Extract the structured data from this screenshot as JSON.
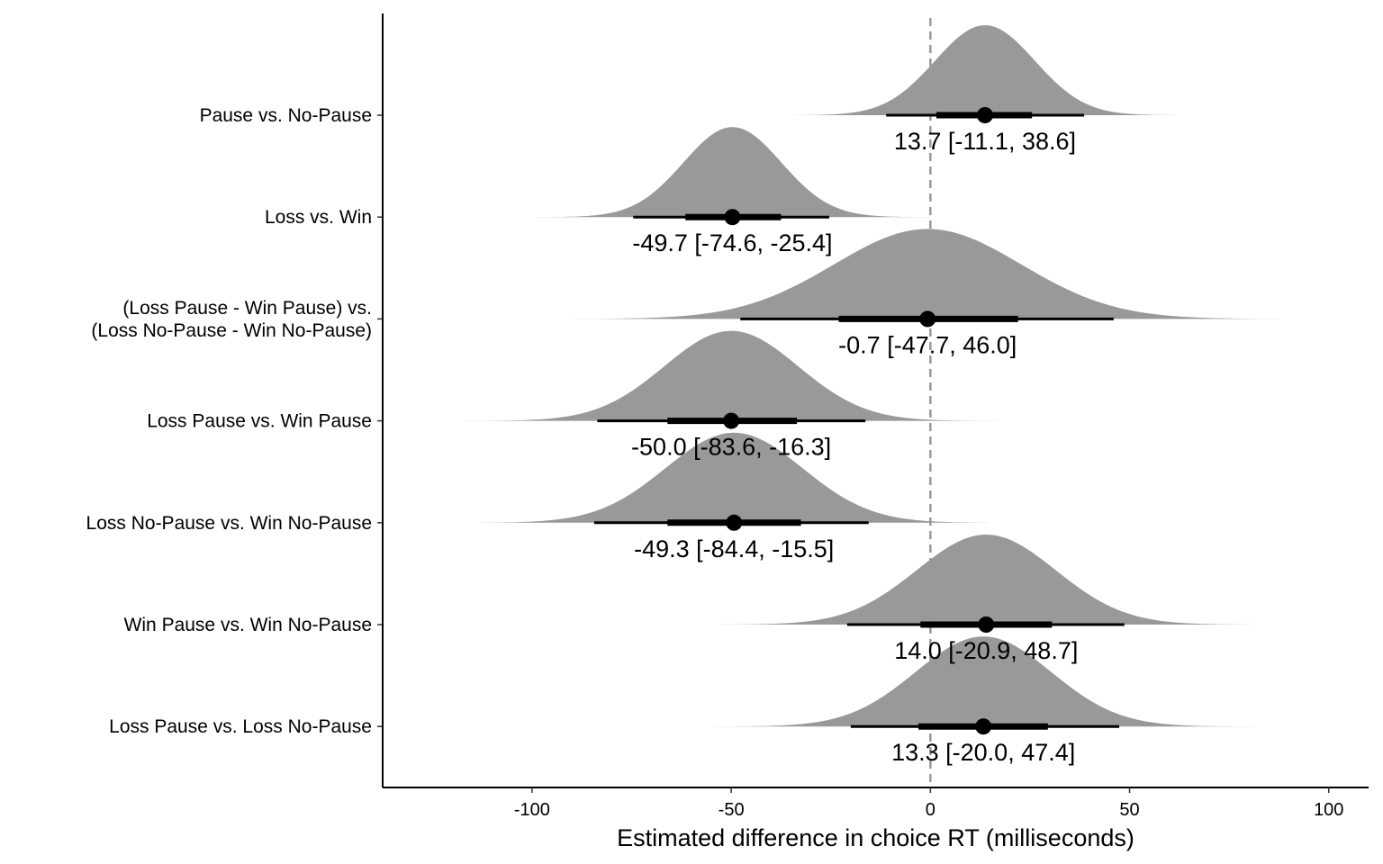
{
  "chart_data": {
    "type": "halfeye",
    "title": "",
    "xlabel": "Estimated difference in choice RT (milliseconds)",
    "ylabel": "",
    "xlim": [
      -137.5,
      110
    ],
    "xticks": [
      -100,
      -50,
      0,
      50,
      100
    ],
    "reference_line_x": 0,
    "grid": false,
    "colors": {
      "density": "#999999",
      "interval": "#000000",
      "reference": "#999999"
    },
    "series": [
      {
        "label_lines": [
          "Pause vs. No-Pause"
        ],
        "median": 13.7,
        "ci_low": -11.1,
        "ci_high": 38.6,
        "inner_low": 1.5,
        "inner_high": 25.5,
        "sd": 12.5,
        "skew": 0.0,
        "annotation": "13.7 [-11.1, 38.6]"
      },
      {
        "label_lines": [
          "Loss vs. Win"
        ],
        "median": -49.7,
        "ci_low": -74.6,
        "ci_high": -25.4,
        "inner_low": -61.5,
        "inner_high": -37.5,
        "sd": 12.3,
        "skew": 0.0,
        "annotation": "-49.7 [-74.6, -25.4]"
      },
      {
        "label_lines": [
          "(Loss Pause - Win Pause) vs.",
          "(Loss No-Pause - Win No-Pause)"
        ],
        "median": -0.7,
        "ci_low": -47.7,
        "ci_high": 46.0,
        "inner_low": -23.0,
        "inner_high": 22.0,
        "sd": 23.5,
        "skew": 0.0,
        "annotation": "-0.7 [-47.7, 46.0]"
      },
      {
        "label_lines": [
          "Loss Pause vs. Win Pause"
        ],
        "median": -50.0,
        "ci_low": -83.6,
        "ci_high": -16.3,
        "inner_low": -66.0,
        "inner_high": -33.5,
        "sd": 16.8,
        "skew": 0.0,
        "annotation": "-50.0 [-83.6, -16.3]"
      },
      {
        "label_lines": [
          "Loss No-Pause vs. Win No-Pause"
        ],
        "median": -49.3,
        "ci_low": -84.4,
        "ci_high": -15.5,
        "inner_low": -66.0,
        "inner_high": -32.5,
        "sd": 17.2,
        "skew": 0.0,
        "annotation": "-49.3 [-84.4, -15.5]"
      },
      {
        "label_lines": [
          "Win Pause vs. Win No-Pause"
        ],
        "median": 14.0,
        "ci_low": -20.9,
        "ci_high": 48.7,
        "inner_low": -2.5,
        "inner_high": 30.5,
        "sd": 17.4,
        "skew": 0.0,
        "annotation": "14.0 [-20.9, 48.7]"
      },
      {
        "label_lines": [
          "Loss Pause vs. Loss No-Pause"
        ],
        "median": 13.3,
        "ci_low": -20.0,
        "ci_high": 47.4,
        "inner_low": -3.0,
        "inner_high": 29.5,
        "sd": 17.0,
        "skew": 0.0,
        "annotation": "13.3 [-20.0, 47.4]"
      }
    ]
  }
}
